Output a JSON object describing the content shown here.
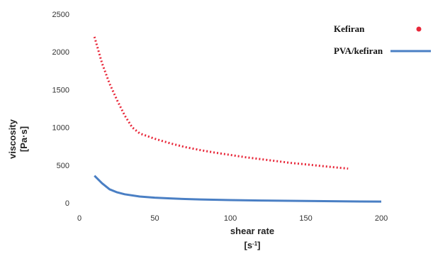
{
  "chart_data": {
    "type": "line",
    "title": "",
    "xlabel": "shear rate",
    "xunit_base": "[s",
    "xunit_exp": "-1",
    "xunit_close": "]",
    "ylabel_line1": "viscosity",
    "ylabel_line2": "[Pa·s]",
    "xlim": [
      0,
      215
    ],
    "ylim": [
      0,
      2500
    ],
    "x_ticks": [
      "0",
      "50",
      "100",
      "150",
      "200"
    ],
    "y_ticks": [
      "0",
      "500",
      "1000",
      "1500",
      "2000",
      "2500"
    ],
    "grid": false,
    "legend_position": "top-right",
    "series": [
      {
        "name": "Kefiran",
        "color": "#e8283a",
        "style": "dotted",
        "x": [
          10,
          15,
          20,
          25,
          30,
          35,
          40,
          50,
          60,
          70,
          80,
          90,
          100,
          110,
          120,
          130,
          140,
          150,
          160,
          170,
          178
        ],
        "y": [
          2200,
          1850,
          1580,
          1360,
          1160,
          1000,
          920,
          850,
          790,
          740,
          700,
          665,
          635,
          605,
          580,
          555,
          530,
          510,
          490,
          470,
          455
        ]
      },
      {
        "name": "PVA/kefiran",
        "color": "#4a7fc4",
        "style": "solid",
        "x": [
          10,
          15,
          20,
          25,
          30,
          40,
          50,
          60,
          70,
          80,
          100,
          120,
          150,
          180,
          200
        ],
        "y": [
          360,
          260,
          180,
          140,
          115,
          85,
          70,
          60,
          52,
          46,
          38,
          32,
          25,
          20,
          18
        ]
      }
    ]
  }
}
